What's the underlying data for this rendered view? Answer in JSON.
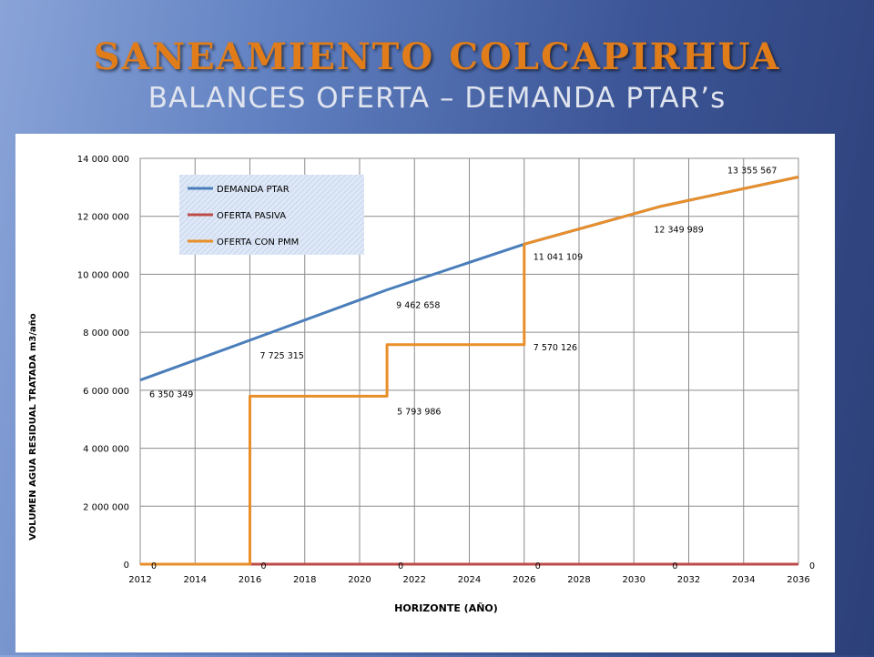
{
  "slide": {
    "title": "SANEAMIENTO COLCAPIRHUA",
    "subtitle": "BALANCES OFERTA – DEMANDA PTAR’s"
  },
  "colors": {
    "demanda": "#4a7ebb",
    "pasiva": "#be4b48",
    "pmm": "#e88e2a",
    "title": "#e07d1a"
  },
  "chart_data": {
    "type": "line",
    "xlabel": "HORIZONTE (AÑO)",
    "ylabel": "VOLUMEN AGUA RESIDUAL TRATADA m3/año",
    "xlim": [
      2012,
      2036
    ],
    "ylim": [
      0,
      14000000
    ],
    "xticks": [
      2012,
      2014,
      2016,
      2018,
      2020,
      2022,
      2024,
      2026,
      2028,
      2030,
      2032,
      2034,
      2036
    ],
    "yticks": [
      0,
      2000000,
      4000000,
      6000000,
      8000000,
      10000000,
      12000000,
      14000000
    ],
    "ytick_labels": [
      "0",
      "2 000 000",
      "4 000 000",
      "6 000 000",
      "8 000 000",
      "10 000 000",
      "12 000 000",
      "14 000 000"
    ],
    "grid": true,
    "legend_position": "top-left",
    "series": [
      {
        "name": "DEMANDA PTAR",
        "x": [
          2012,
          2016,
          2021,
          2026,
          2031,
          2036
        ],
        "y": [
          6350349,
          7725315,
          9462658,
          11041109,
          12349989,
          13355567
        ]
      },
      {
        "name": "OFERTA PASIVA",
        "x": [
          2012,
          2036
        ],
        "y": [
          0,
          0
        ]
      },
      {
        "name": "OFERTA CON PMM",
        "x": [
          2012,
          2016,
          2016,
          2021,
          2021,
          2026,
          2026,
          2031,
          2036
        ],
        "y": [
          0,
          0,
          5793986,
          5793986,
          7570126,
          7570126,
          11041109,
          12349989,
          13355567
        ]
      }
    ],
    "data_labels": [
      {
        "x": 2012,
        "y": 6350349,
        "text": "6 350 349"
      },
      {
        "x": 2016,
        "y": 7725315,
        "text": "7 725 315"
      },
      {
        "x": 2021,
        "y": 9462658,
        "text": "9 462 658"
      },
      {
        "x": 2026,
        "y": 11041109,
        "text": "11 041 109"
      },
      {
        "x": 2031,
        "y": 12349989,
        "text": "12 349 989"
      },
      {
        "x": 2036,
        "y": 13355567,
        "text": "13 355 567"
      },
      {
        "x": 2021,
        "y": 5793986,
        "text": "5 793 986"
      },
      {
        "x": 2026,
        "y": 7570126,
        "text": "7 570 126"
      },
      {
        "x": 2012,
        "y": 0,
        "text": "0"
      },
      {
        "x": 2016,
        "y": 0,
        "text": "0"
      },
      {
        "x": 2021,
        "y": 0,
        "text": "0"
      },
      {
        "x": 2026,
        "y": 0,
        "text": "0"
      },
      {
        "x": 2031,
        "y": 0,
        "text": "0"
      },
      {
        "x": 2036,
        "y": 0,
        "text": "0"
      }
    ]
  }
}
